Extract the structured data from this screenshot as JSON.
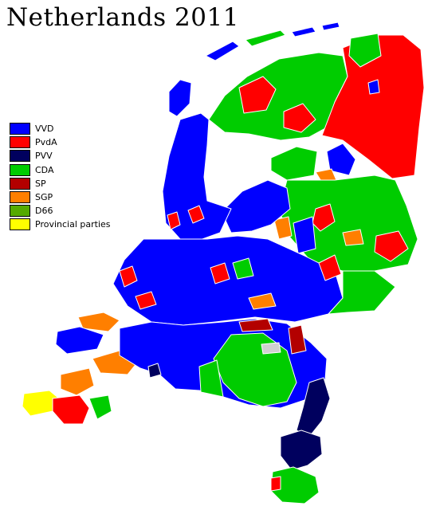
{
  "title": "Netherlands 2011",
  "legend": [
    {
      "label": "VVD",
      "color": "#0000ff"
    },
    {
      "label": "PvdA",
      "color": "#ff0000"
    },
    {
      "label": "PVV",
      "color": "#00005e"
    },
    {
      "label": "CDA",
      "color": "#00cc00"
    },
    {
      "label": "SP",
      "color": "#b30000"
    },
    {
      "label": "SGP",
      "color": "#ff7f00"
    },
    {
      "label": "D66",
      "color": "#55aa00"
    },
    {
      "label": "Provincial parties",
      "color": "#ffff00"
    }
  ]
}
